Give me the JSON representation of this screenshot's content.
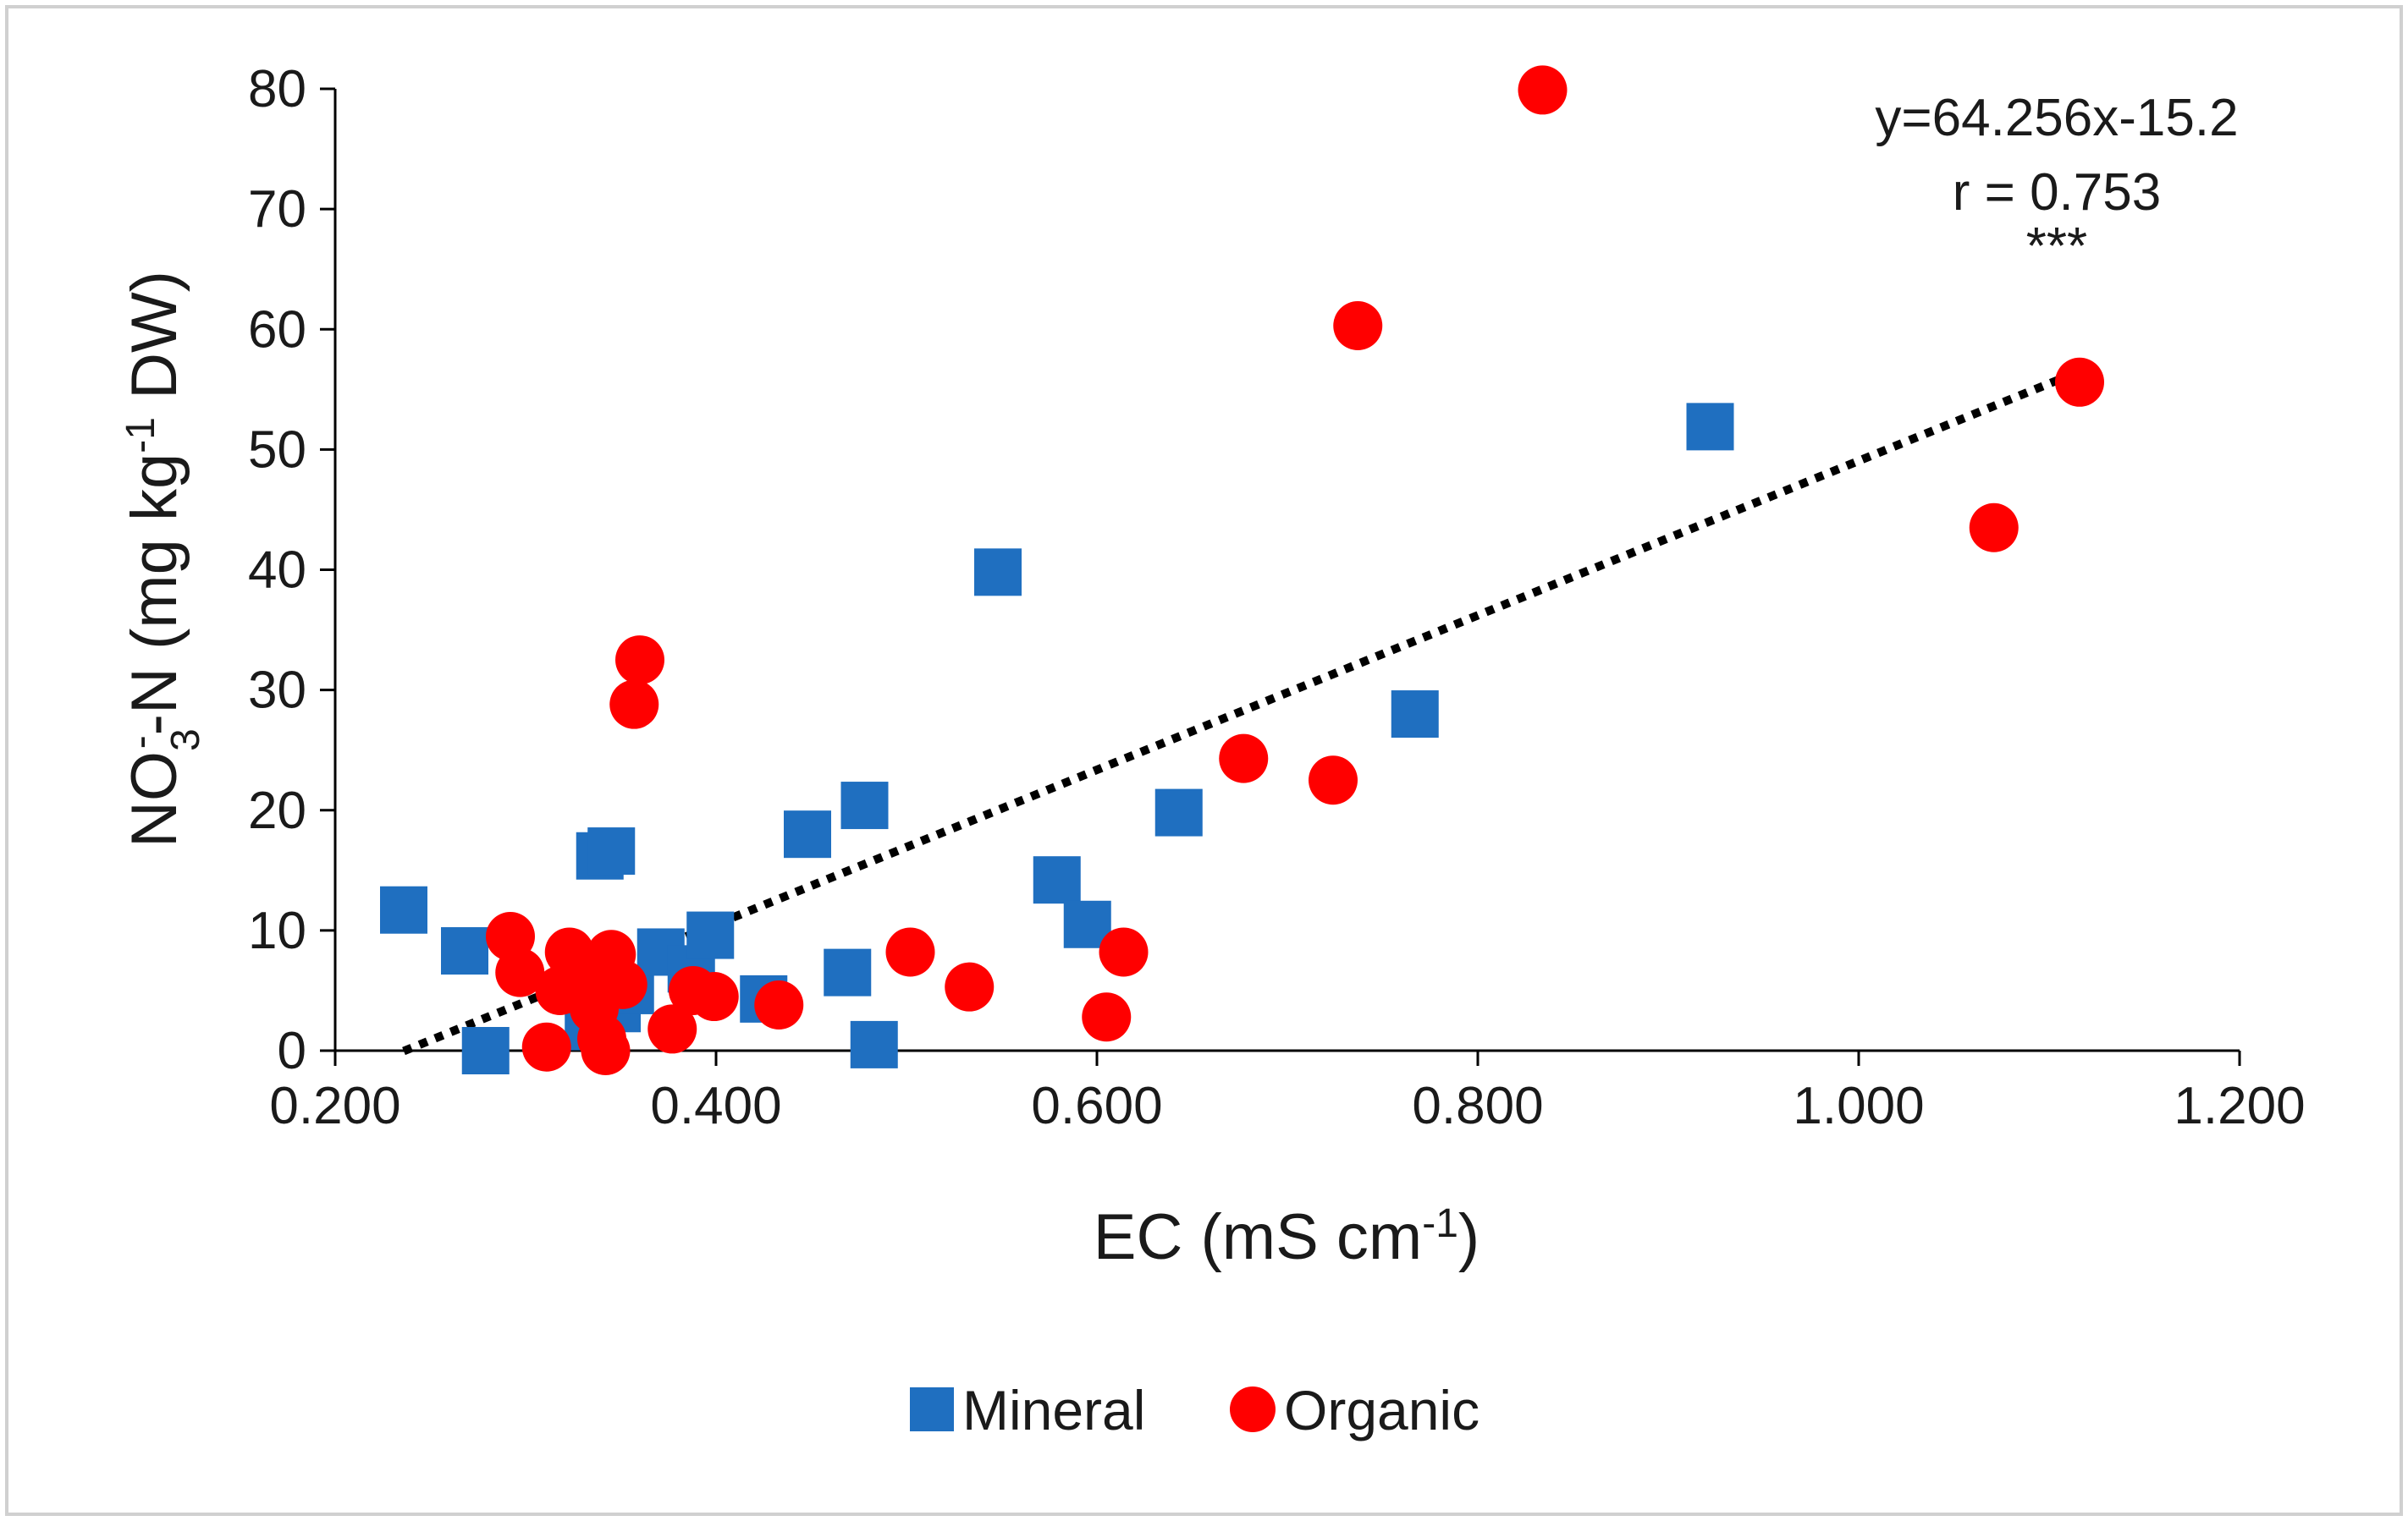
{
  "chart_data": {
    "type": "scatter",
    "title": "",
    "xlabel": {
      "main": "EC (mS cm",
      "sup": "-1",
      "end": ")"
    },
    "ylabel": {
      "pre": "NO",
      "sub": "3",
      "sup": "-",
      "mid": "-N (mg kg",
      "sup2": "-1",
      "end": " DW)"
    },
    "xlim": [
      0.2,
      1.2
    ],
    "ylim": [
      0,
      80
    ],
    "xticks": [
      0.2,
      0.4,
      0.6,
      0.8,
      1.0,
      1.2
    ],
    "xtick_labels": [
      "0.200",
      "0.400",
      "0.600",
      "0.800",
      "1.000",
      "1.200"
    ],
    "yticks": [
      0,
      10,
      20,
      30,
      40,
      50,
      60,
      70,
      80
    ],
    "ytick_labels": [
      "0",
      "10",
      "20",
      "30",
      "40",
      "50",
      "60",
      "70",
      "80"
    ],
    "grid": false,
    "legend_position": "bottom",
    "series": [
      {
        "name": "Mineral",
        "marker": "square",
        "color": "#1f6fc0",
        "points": [
          [
            0.236,
            11.7
          ],
          [
            0.268,
            8.3
          ],
          [
            0.279,
            0.0
          ],
          [
            0.333,
            2.0
          ],
          [
            0.339,
            16.2
          ],
          [
            0.345,
            16.6
          ],
          [
            0.348,
            3.5
          ],
          [
            0.355,
            5.0
          ],
          [
            0.371,
            8.2
          ],
          [
            0.387,
            6.8
          ],
          [
            0.397,
            9.6
          ],
          [
            0.425,
            4.3
          ],
          [
            0.448,
            18.0
          ],
          [
            0.469,
            6.5
          ],
          [
            0.478,
            20.4
          ],
          [
            0.483,
            0.5
          ],
          [
            0.548,
            39.8
          ],
          [
            0.579,
            14.2
          ],
          [
            0.595,
            10.5
          ],
          [
            0.643,
            19.8
          ],
          [
            0.767,
            28.0
          ],
          [
            0.922,
            51.9
          ]
        ]
      },
      {
        "name": "Organic",
        "marker": "circle",
        "color": "#ff0000",
        "points": [
          [
            0.292,
            9.5
          ],
          [
            0.297,
            6.5
          ],
          [
            0.311,
            0.3
          ],
          [
            0.318,
            5.0
          ],
          [
            0.323,
            8.2
          ],
          [
            0.33,
            7.0
          ],
          [
            0.336,
            3.5
          ],
          [
            0.34,
            1.0
          ],
          [
            0.342,
            0.0
          ],
          [
            0.345,
            8.0
          ],
          [
            0.351,
            5.5
          ],
          [
            0.357,
            28.8
          ],
          [
            0.36,
            32.5
          ],
          [
            0.377,
            1.8
          ],
          [
            0.388,
            5.0
          ],
          [
            0.399,
            4.5
          ],
          [
            0.433,
            3.8
          ],
          [
            0.502,
            8.2
          ],
          [
            0.533,
            5.3
          ],
          [
            0.605,
            2.8
          ],
          [
            0.614,
            8.2
          ],
          [
            0.677,
            24.3
          ],
          [
            0.724,
            22.5
          ],
          [
            0.737,
            60.3
          ],
          [
            0.834,
            79.9
          ],
          [
            1.071,
            43.5
          ],
          [
            1.116,
            55.6
          ]
        ]
      }
    ],
    "trendline": {
      "style": "dotted",
      "color": "#000000",
      "slope": 64.256,
      "intercept": -15.2,
      "x_range": [
        0.236,
        1.116
      ]
    },
    "annotations": {
      "equation": "y=64.256x-15.2",
      "r": "r = 0.753",
      "significance": "***"
    }
  }
}
